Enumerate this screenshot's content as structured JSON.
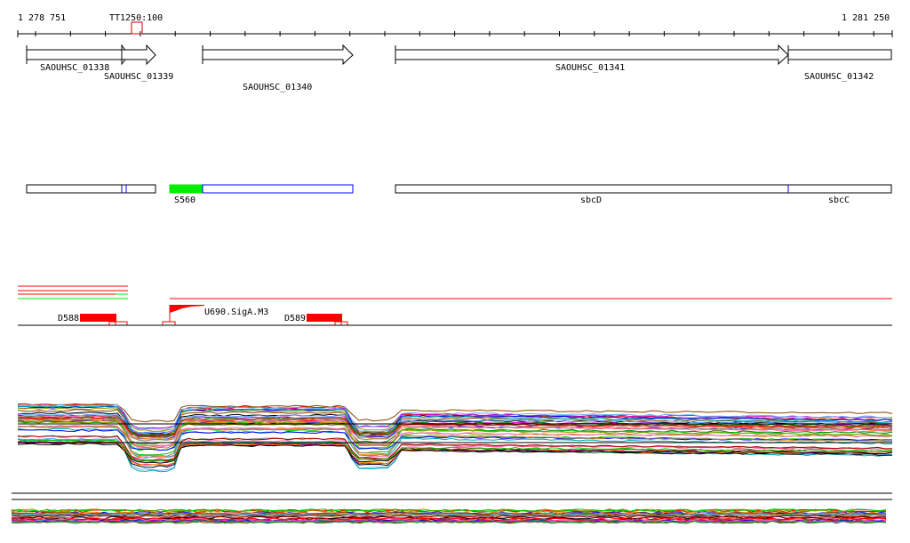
{
  "ruler": {
    "start_label": "1 278 751",
    "end_label": "1 281 250",
    "marker_label": "TT1250:100"
  },
  "genes": [
    {
      "id": "g1338",
      "label": "SAOUHSC_01338"
    },
    {
      "id": "g1339",
      "label": "SAOUHSC_01339"
    },
    {
      "id": "g1340",
      "label": "SAOUHSC_01340"
    },
    {
      "id": "g1341",
      "label": "SAOUHSC_01341"
    },
    {
      "id": "g1342",
      "label": "SAOUHSC_01342"
    }
  ],
  "annotations": [
    {
      "label": "S560"
    },
    {
      "label": "sbcD"
    },
    {
      "label": "sbcC"
    }
  ],
  "features": {
    "d588": "D588",
    "d589": "D589",
    "u690": "U690.SigA.M3"
  },
  "colors": {
    "feature": "#ff0000",
    "highlight": "#00ee00",
    "box_border": "#0000ff",
    "profile_palette": [
      "#ff0000",
      "#00cc00",
      "#0000ff",
      "#cc00cc",
      "#999900",
      "#00aaaa",
      "#ff8800",
      "#884400",
      "#000000",
      "#888888",
      "#ff66aa",
      "#66aaff",
      "#aa0000",
      "#008800"
    ]
  }
}
